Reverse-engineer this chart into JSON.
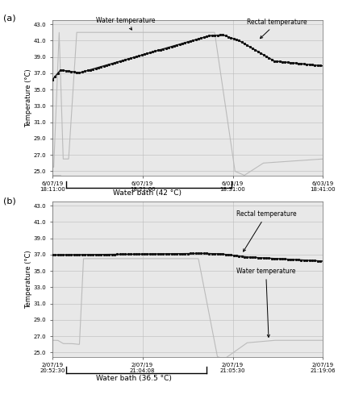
{
  "panel_a": {
    "ylabel": "Temperature (°C)",
    "ylim": [
      24.5,
      43.5
    ],
    "ytick_vals": [
      25.0,
      27.0,
      29.0,
      31.0,
      33.0,
      35.0,
      37.0,
      39.0,
      41.0,
      43.0
    ],
    "ytick_labels": [
      "25.0",
      "27.0",
      "29.0",
      "31.0",
      "33.0",
      "35.0",
      "37.0",
      "39.0",
      "41.0",
      "43.0"
    ],
    "xtick_labels": [
      "6/07/19\n18:11:00",
      "6/07/19\n18:21:00",
      "6/03/19\n18:31:00",
      "6/03/19\n18:41:00"
    ],
    "water_bath_label": "Water bath (42 °C)",
    "annotation_water": "Water temperature",
    "annotation_rectal": "Rectal temperature",
    "rectal_color": "#111111",
    "water_color": "#bbbbbb",
    "plot_bg": "#e8e8e8",
    "inner_bg": "#ffffff"
  },
  "panel_b": {
    "ylabel": "Temperature (°C)",
    "ylim": [
      24.5,
      43.5
    ],
    "ytick_vals": [
      25.0,
      27.0,
      29.0,
      31.0,
      33.0,
      35.0,
      37.0,
      39.0,
      41.0,
      43.0
    ],
    "ytick_labels": [
      "25.0",
      "27.0",
      "29.0",
      "31.0",
      "33.0",
      "35.0",
      "37.0",
      "39.0",
      "41.0",
      "43.0"
    ],
    "xtick_labels": [
      "2/07/19\n20:52:30",
      "2/07/19\n21:04:08",
      "2/07/19\n21:05:30",
      "2/07/19\n21:19:06"
    ],
    "water_bath_label": "Water bath (36.5 °C)",
    "annotation_water": "Water temperature",
    "annotation_rectal": "Rectal temperature",
    "rectal_color": "#111111",
    "water_color": "#bbbbbb",
    "plot_bg": "#e8e8e8",
    "inner_bg": "#ffffff"
  },
  "fig_bg": "#ffffff",
  "label_a": "(a)",
  "label_b": "(b)"
}
